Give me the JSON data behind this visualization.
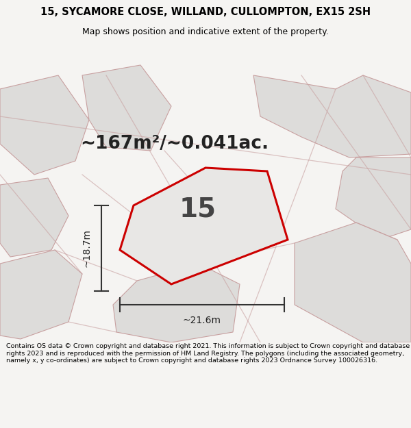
{
  "title_line1": "15, SYCAMORE CLOSE, WILLAND, CULLOMPTON, EX15 2SH",
  "title_line2": "Map shows position and indicative extent of the property.",
  "area_text": "~167m²/~0.041ac.",
  "plot_number": "15",
  "dim_width": "~21.6m",
  "dim_height": "~18.7m",
  "footer_text": "Contains OS data © Crown copyright and database right 2021. This information is subject to Crown copyright and database rights 2023 and is reproduced with the permission of HM Land Registry. The polygons (including the associated geometry, namely x, y co-ordinates) are subject to Crown copyright and database rights 2023 Ordnance Survey 100026316.",
  "bg_color": "#f5f4f2",
  "map_bg": "#f0efed",
  "plot_fill": "#e8e7e5",
  "plot_edge_color": "#cc0000",
  "neighbor_fill": "#dddcda",
  "neighbor_edge_color": "#c8a0a0",
  "dim_line_color": "#333333",
  "title_color": "#000000",
  "footer_color": "#000000",
  "title_fontsize": 10.5,
  "subtitle_fontsize": 9,
  "area_fontsize": 19,
  "number_fontsize": 28,
  "dim_fontsize": 10,
  "footer_fontsize": 6.8
}
